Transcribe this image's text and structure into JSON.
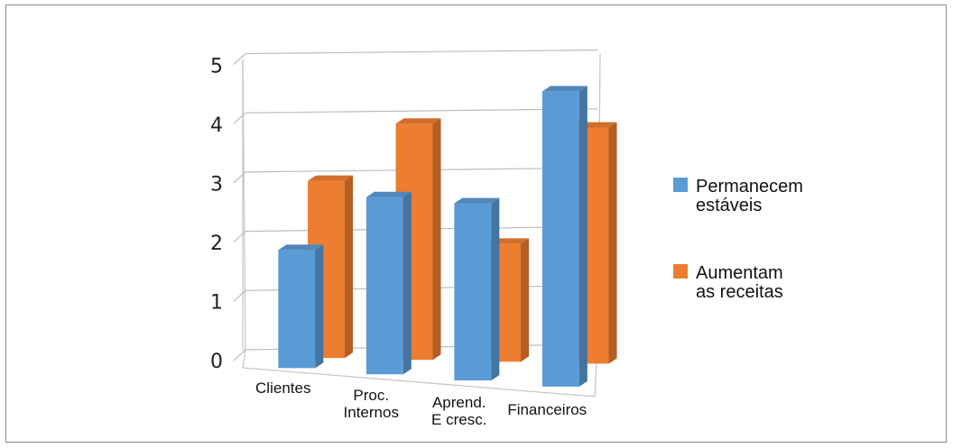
{
  "chart_data": {
    "type": "bar",
    "categories": [
      [
        "Clientes"
      ],
      [
        "Proc.",
        "Internos"
      ],
      [
        "Aprend.",
        "E cresc."
      ],
      [
        "Financeiros"
      ]
    ],
    "yticks": [
      "0",
      "1",
      "2",
      "3",
      "4",
      "5"
    ],
    "ylim": [
      0,
      5
    ],
    "grid": true,
    "legend_position": "right",
    "series": [
      {
        "name": [
          "Permanecem",
          "estáveis"
        ],
        "values": [
          2,
          3,
          3,
          5
        ],
        "color": "#5b9bd5"
      },
      {
        "name": [
          "Aumentam",
          "as receitas"
        ],
        "values": [
          3,
          4,
          2,
          4
        ],
        "color": "#ed7d31"
      }
    ]
  }
}
